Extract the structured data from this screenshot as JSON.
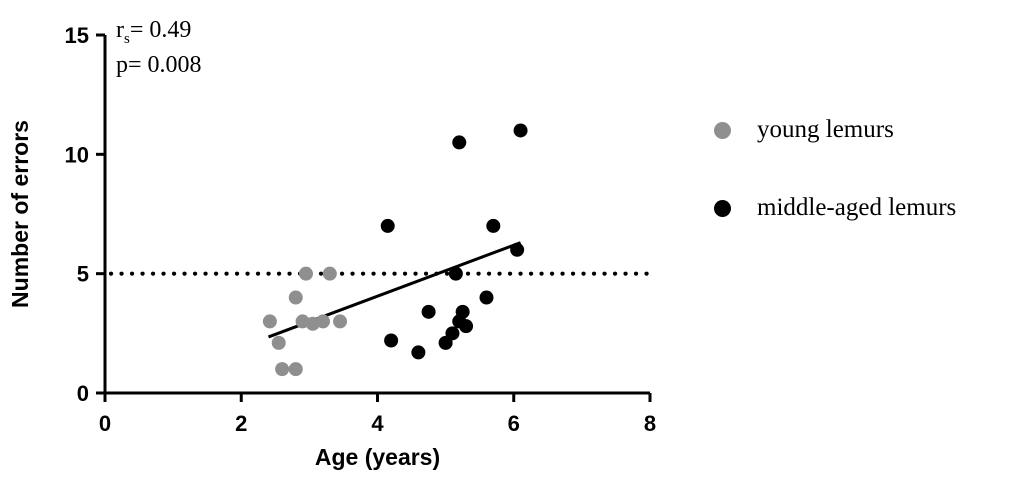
{
  "chart_data": {
    "type": "scatter",
    "title": "",
    "xlabel": "Age (years)",
    "ylabel": "Number of errors",
    "xlim": [
      0,
      8
    ],
    "ylim": [
      0,
      15
    ],
    "x_ticks": [
      0,
      2,
      4,
      6,
      8
    ],
    "y_ticks": [
      0,
      5,
      10,
      15
    ],
    "grid": false,
    "legend_position": "right",
    "annotation": {
      "r_label": "r",
      "r_sub": "s",
      "r_eq": "= 0.49",
      "p_line": "p= 0.008"
    },
    "reference_line": {
      "y": 5,
      "style": "dotted"
    },
    "trendline": {
      "x1": 2.4,
      "y1": 2.35,
      "x2": 6.1,
      "y2": 6.3
    },
    "series": [
      {
        "name": "young lemurs",
        "color": "#8f8f8f",
        "points": [
          [
            2.42,
            3.0
          ],
          [
            2.55,
            2.1
          ],
          [
            2.6,
            1.0
          ],
          [
            2.8,
            1.0
          ],
          [
            2.8,
            4.0
          ],
          [
            2.9,
            3.0
          ],
          [
            2.95,
            5.0
          ],
          [
            3.05,
            2.9
          ],
          [
            3.2,
            3.0
          ],
          [
            3.3,
            5.0
          ],
          [
            3.45,
            3.0
          ]
        ]
      },
      {
        "name": "middle-aged lemurs",
        "color": "#000000",
        "points": [
          [
            4.15,
            7.0
          ],
          [
            4.2,
            2.2
          ],
          [
            4.6,
            1.7
          ],
          [
            4.75,
            3.4
          ],
          [
            5.0,
            2.1
          ],
          [
            5.1,
            2.5
          ],
          [
            5.15,
            5.0
          ],
          [
            5.2,
            10.5
          ],
          [
            5.2,
            3.0
          ],
          [
            5.25,
            3.4
          ],
          [
            5.3,
            2.8
          ],
          [
            5.6,
            4.0
          ],
          [
            5.7,
            7.0
          ],
          [
            6.05,
            6.0
          ],
          [
            6.1,
            11.0
          ]
        ]
      }
    ]
  }
}
